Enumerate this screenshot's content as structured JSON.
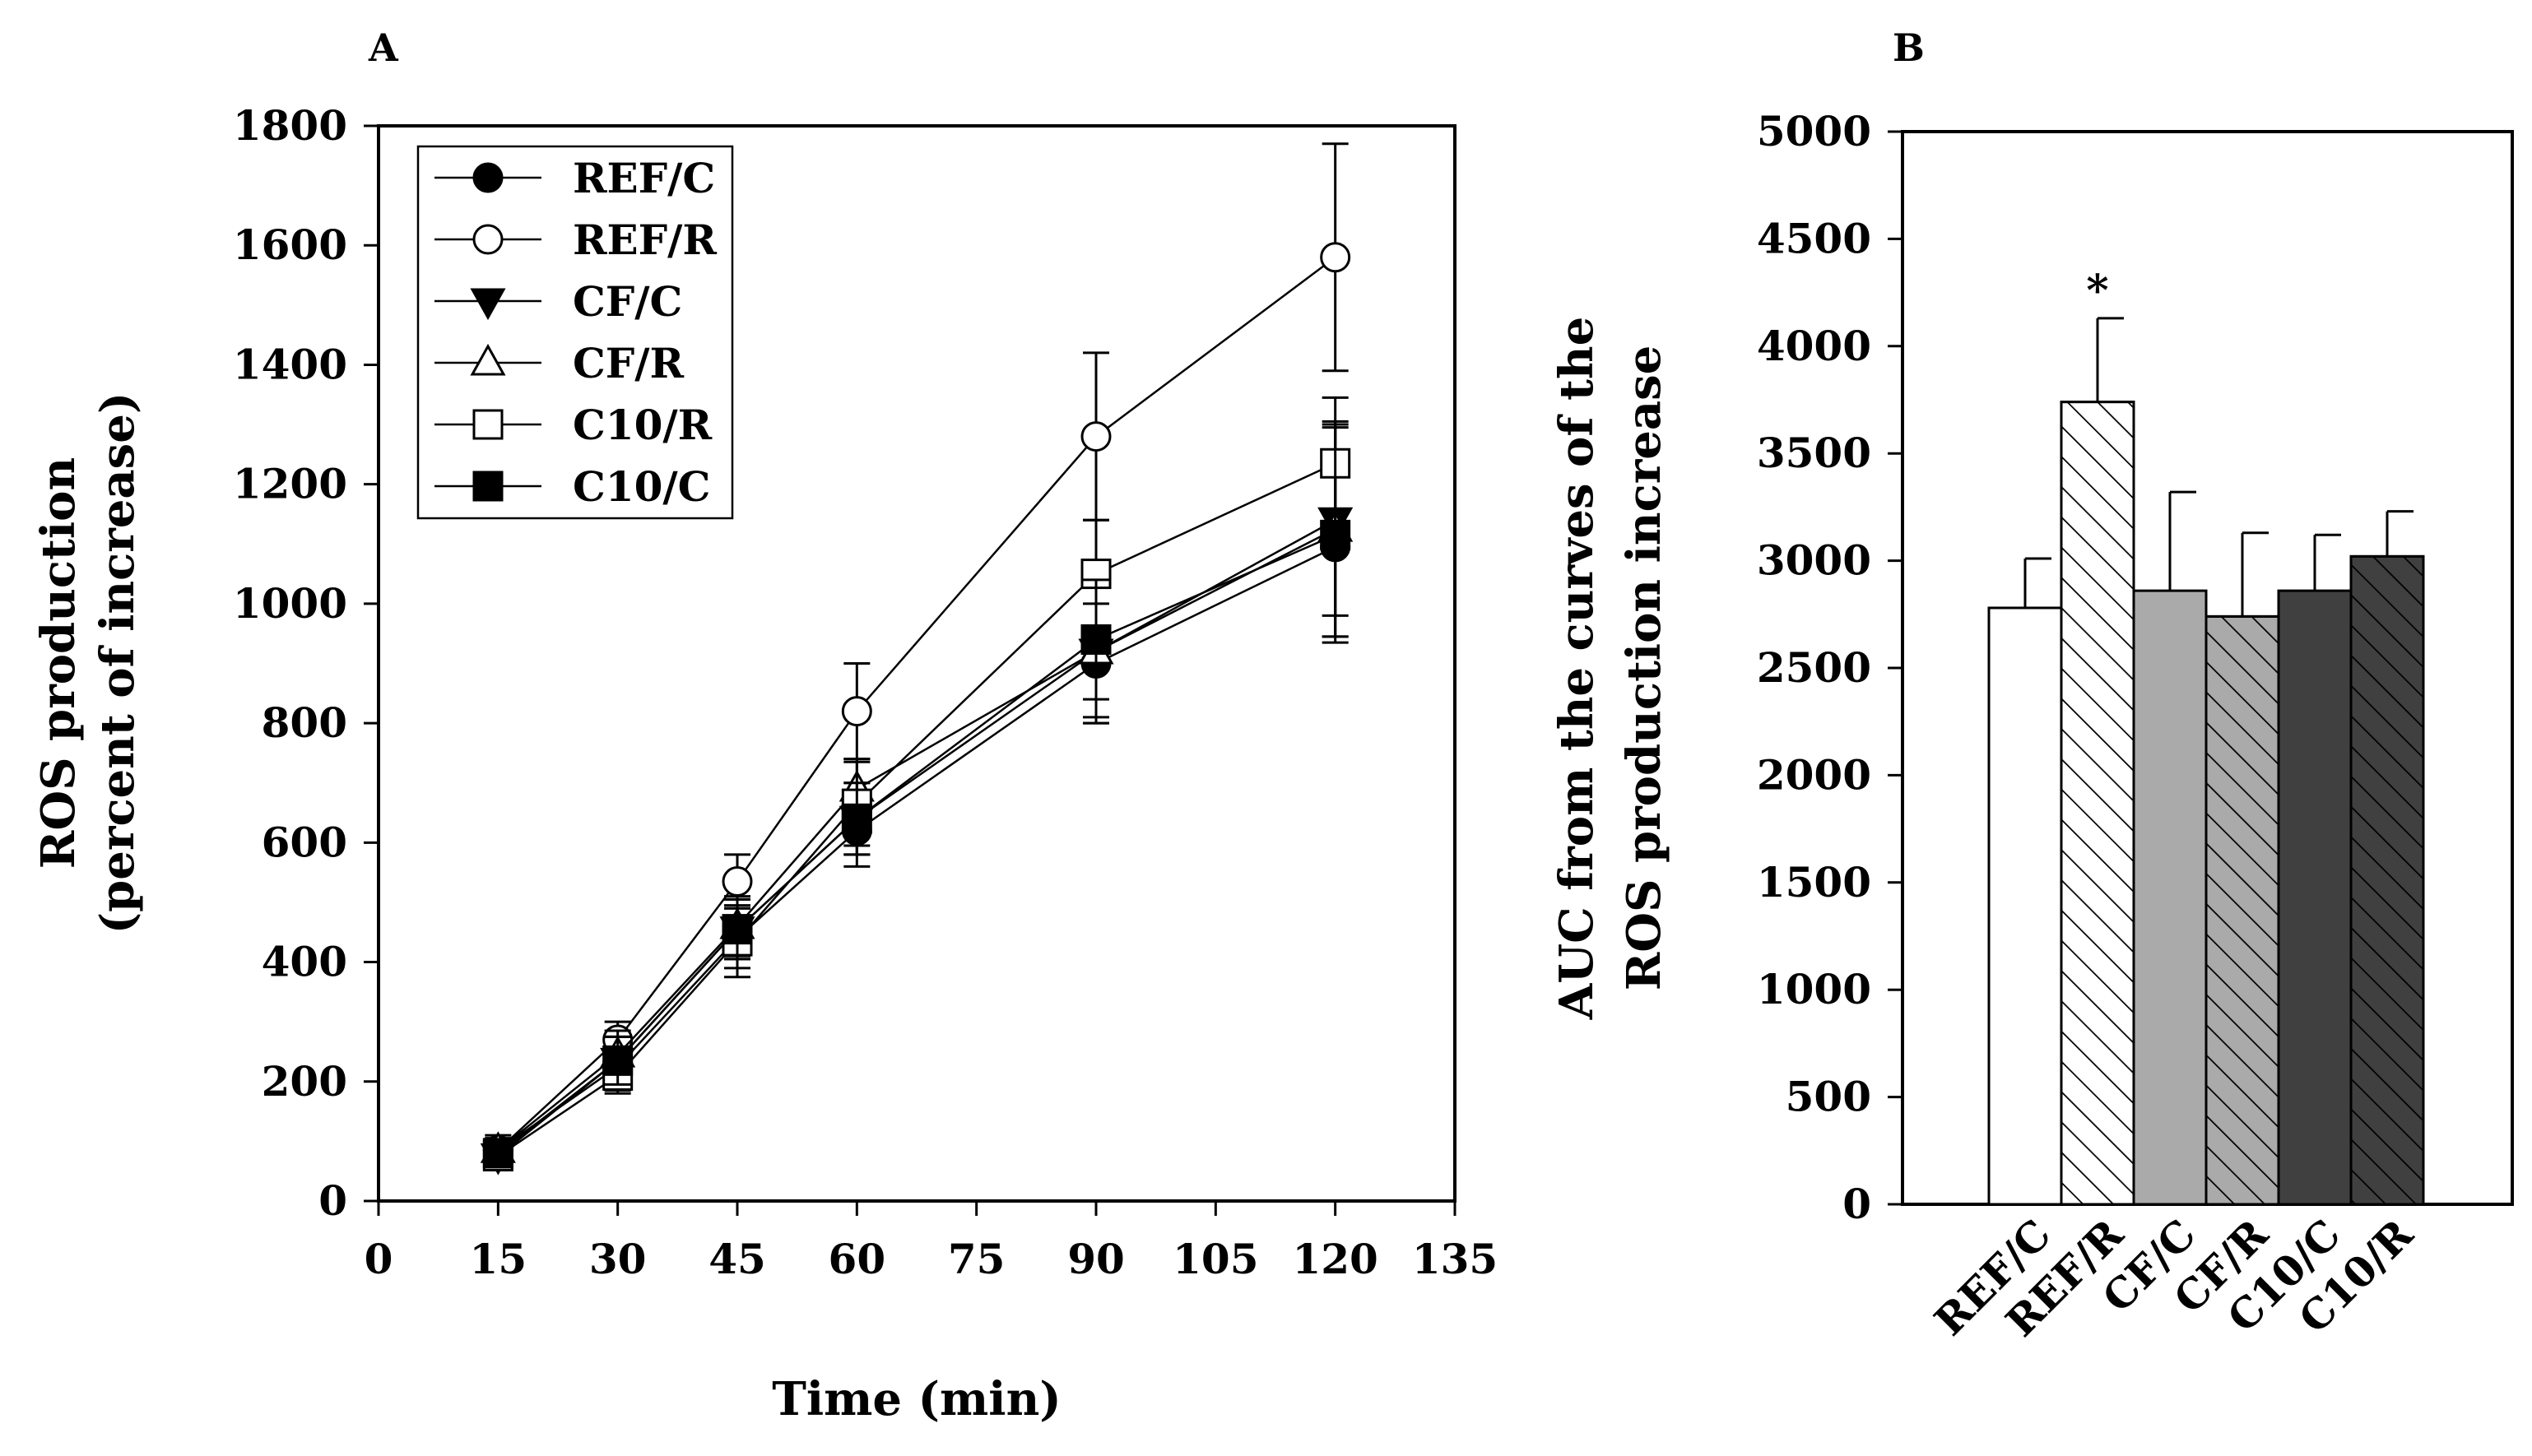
{
  "chart_data": [
    {
      "panel_label": "A",
      "type": "line",
      "xlabel": "Time (min)",
      "ylabel_lines": [
        "ROS production",
        "(percent of increase)"
      ],
      "xlim": [
        0,
        135
      ],
      "ylim": [
        0,
        1800
      ],
      "xticks": [
        "0",
        "15",
        "30",
        "45",
        "60",
        "75",
        "90",
        "105",
        "120",
        "135"
      ],
      "yticks": [
        "0",
        "200",
        "400",
        "600",
        "800",
        "1000",
        "1200",
        "1400",
        "1600",
        "1800"
      ],
      "x": [
        15,
        30,
        45,
        60,
        90,
        120
      ],
      "legend_position": "top-left",
      "series": [
        {
          "name": "REF/C",
          "marker": "circle-filled",
          "values": [
            85,
            225,
            440,
            620,
            900,
            1095
          ],
          "errors": [
            25,
            40,
            50,
            60,
            100,
            150
          ]
        },
        {
          "name": "REF/R",
          "marker": "circle-open",
          "values": [
            85,
            270,
            535,
            820,
            1280,
            1580
          ],
          "errors": [
            20,
            30,
            45,
            80,
            140,
            190
          ]
        },
        {
          "name": "CF/C",
          "marker": "triangle-down-filled",
          "values": [
            75,
            235,
            455,
            640,
            920,
            1140
          ],
          "errors": [
            20,
            40,
            50,
            60,
            110,
            160
          ]
        },
        {
          "name": "CF/R",
          "marker": "triangle-up-open",
          "values": [
            85,
            245,
            460,
            690,
            920,
            1125
          ],
          "errors": [
            20,
            40,
            50,
            50,
            120,
            180
          ]
        },
        {
          "name": "C10/R",
          "marker": "square-open",
          "values": [
            75,
            210,
            435,
            665,
            1050,
            1235
          ],
          "errors": [
            20,
            30,
            60,
            70,
            90,
            110
          ]
        },
        {
          "name": "C10/C",
          "marker": "square-filled",
          "values": [
            80,
            235,
            455,
            640,
            940,
            1115
          ],
          "errors": [
            20,
            40,
            50,
            60,
            100,
            180
          ]
        }
      ]
    },
    {
      "panel_label": "B",
      "type": "bar",
      "ylabel_lines": [
        "AUC from the curves of the",
        "ROS production increase"
      ],
      "ylim": [
        0,
        5000
      ],
      "yticks": [
        "0",
        "500",
        "1000",
        "1500",
        "2000",
        "2500",
        "3000",
        "3500",
        "4000",
        "4500",
        "5000"
      ],
      "categories": [
        "REF/C",
        "REF/R",
        "CF/C",
        "CF/R",
        "C10/C",
        "C10/R"
      ],
      "values": [
        2780,
        3740,
        2860,
        2740,
        2860,
        3020
      ],
      "errors": [
        230,
        390,
        460,
        390,
        260,
        210
      ],
      "fills": [
        "#ffffff",
        "#ffffff",
        "#aaaaaa",
        "#aaaaaa",
        "#404040",
        "#404040"
      ],
      "hatched": [
        false,
        true,
        false,
        true,
        false,
        true
      ],
      "significance": [
        "",
        "*",
        "",
        "",
        "",
        ""
      ]
    }
  ]
}
